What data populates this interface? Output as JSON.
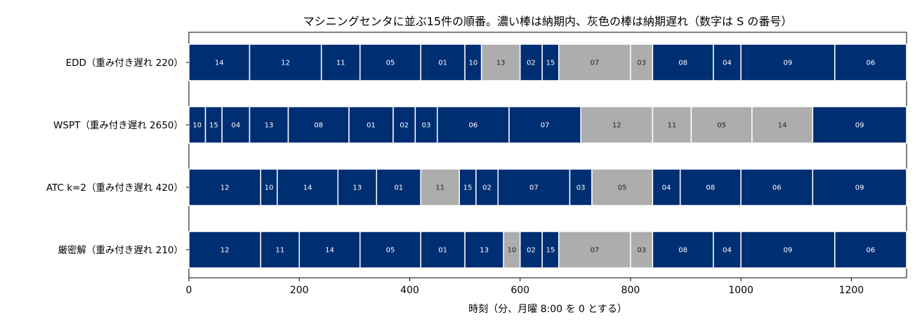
{
  "chart_data": {
    "type": "gantt",
    "title": "マシニングセンタに並ぶ15件の順番。濃い棒は納期内、灰色の棒は納期遅れ（数字は S の番号）",
    "xlabel": "時刻（分、月曜 8:00 を 0 とする）",
    "xlim": [
      0,
      1300
    ],
    "xticks": [
      0,
      200,
      400,
      600,
      800,
      1000,
      1200
    ],
    "colors": {
      "on_time": "#002e73",
      "late": "#adadad",
      "on_time_text": "#ffffff",
      "late_text": "#222222"
    },
    "rows": [
      {
        "label": "EDD（重み付き遅れ 220）",
        "jobs": [
          {
            "id": "14",
            "start": 0,
            "end": 110,
            "late": false
          },
          {
            "id": "12",
            "start": 110,
            "end": 240,
            "late": false
          },
          {
            "id": "11",
            "start": 240,
            "end": 310,
            "late": false
          },
          {
            "id": "05",
            "start": 310,
            "end": 420,
            "late": false
          },
          {
            "id": "01",
            "start": 420,
            "end": 500,
            "late": false
          },
          {
            "id": "10",
            "start": 500,
            "end": 530,
            "late": false
          },
          {
            "id": "13",
            "start": 530,
            "end": 600,
            "late": true
          },
          {
            "id": "02",
            "start": 600,
            "end": 640,
            "late": false
          },
          {
            "id": "15",
            "start": 640,
            "end": 670,
            "late": false
          },
          {
            "id": "07",
            "start": 670,
            "end": 800,
            "late": true
          },
          {
            "id": "03",
            "start": 800,
            "end": 840,
            "late": true
          },
          {
            "id": "08",
            "start": 840,
            "end": 950,
            "late": false
          },
          {
            "id": "04",
            "start": 950,
            "end": 1000,
            "late": false
          },
          {
            "id": "09",
            "start": 1000,
            "end": 1170,
            "late": false
          },
          {
            "id": "06",
            "start": 1170,
            "end": 1300,
            "late": false
          }
        ]
      },
      {
        "label": "WSPT（重み付き遅れ 2650）",
        "jobs": [
          {
            "id": "10",
            "start": 0,
            "end": 30,
            "late": false
          },
          {
            "id": "15",
            "start": 30,
            "end": 60,
            "late": false
          },
          {
            "id": "04",
            "start": 60,
            "end": 110,
            "late": false
          },
          {
            "id": "13",
            "start": 110,
            "end": 180,
            "late": false
          },
          {
            "id": "08",
            "start": 180,
            "end": 290,
            "late": false
          },
          {
            "id": "01",
            "start": 290,
            "end": 370,
            "late": false
          },
          {
            "id": "02",
            "start": 370,
            "end": 410,
            "late": false
          },
          {
            "id": "03",
            "start": 410,
            "end": 450,
            "late": false
          },
          {
            "id": "06",
            "start": 450,
            "end": 580,
            "late": false
          },
          {
            "id": "07",
            "start": 580,
            "end": 710,
            "late": false
          },
          {
            "id": "12",
            "start": 710,
            "end": 840,
            "late": true
          },
          {
            "id": "11",
            "start": 840,
            "end": 910,
            "late": true
          },
          {
            "id": "05",
            "start": 910,
            "end": 1020,
            "late": true
          },
          {
            "id": "14",
            "start": 1020,
            "end": 1130,
            "late": true
          },
          {
            "id": "09",
            "start": 1130,
            "end": 1300,
            "late": false
          }
        ]
      },
      {
        "label": "ATC k=2（重み付き遅れ 420）",
        "jobs": [
          {
            "id": "12",
            "start": 0,
            "end": 130,
            "late": false
          },
          {
            "id": "10",
            "start": 130,
            "end": 160,
            "late": false
          },
          {
            "id": "14",
            "start": 160,
            "end": 270,
            "late": false
          },
          {
            "id": "13",
            "start": 270,
            "end": 340,
            "late": false
          },
          {
            "id": "01",
            "start": 340,
            "end": 420,
            "late": false
          },
          {
            "id": "11",
            "start": 420,
            "end": 490,
            "late": true
          },
          {
            "id": "15",
            "start": 490,
            "end": 520,
            "late": false
          },
          {
            "id": "02",
            "start": 520,
            "end": 560,
            "late": false
          },
          {
            "id": "07",
            "start": 560,
            "end": 690,
            "late": false
          },
          {
            "id": "03",
            "start": 690,
            "end": 730,
            "late": false
          },
          {
            "id": "05",
            "start": 730,
            "end": 840,
            "late": true
          },
          {
            "id": "04",
            "start": 840,
            "end": 890,
            "late": false
          },
          {
            "id": "08",
            "start": 890,
            "end": 1000,
            "late": false
          },
          {
            "id": "06",
            "start": 1000,
            "end": 1130,
            "late": false
          },
          {
            "id": "09",
            "start": 1130,
            "end": 1300,
            "late": false
          }
        ]
      },
      {
        "label": "厳密解（重み付き遅れ 210）",
        "jobs": [
          {
            "id": "12",
            "start": 0,
            "end": 130,
            "late": false
          },
          {
            "id": "11",
            "start": 130,
            "end": 200,
            "late": false
          },
          {
            "id": "14",
            "start": 200,
            "end": 310,
            "late": false
          },
          {
            "id": "05",
            "start": 310,
            "end": 420,
            "late": false
          },
          {
            "id": "01",
            "start": 420,
            "end": 500,
            "late": false
          },
          {
            "id": "13",
            "start": 500,
            "end": 570,
            "late": false
          },
          {
            "id": "10",
            "start": 570,
            "end": 600,
            "late": true
          },
          {
            "id": "02",
            "start": 600,
            "end": 640,
            "late": false
          },
          {
            "id": "15",
            "start": 640,
            "end": 670,
            "late": false
          },
          {
            "id": "07",
            "start": 670,
            "end": 800,
            "late": true
          },
          {
            "id": "03",
            "start": 800,
            "end": 840,
            "late": true
          },
          {
            "id": "08",
            "start": 840,
            "end": 950,
            "late": false
          },
          {
            "id": "04",
            "start": 950,
            "end": 1000,
            "late": false
          },
          {
            "id": "09",
            "start": 1000,
            "end": 1170,
            "late": false
          },
          {
            "id": "06",
            "start": 1170,
            "end": 1300,
            "late": false
          }
        ]
      }
    ]
  }
}
